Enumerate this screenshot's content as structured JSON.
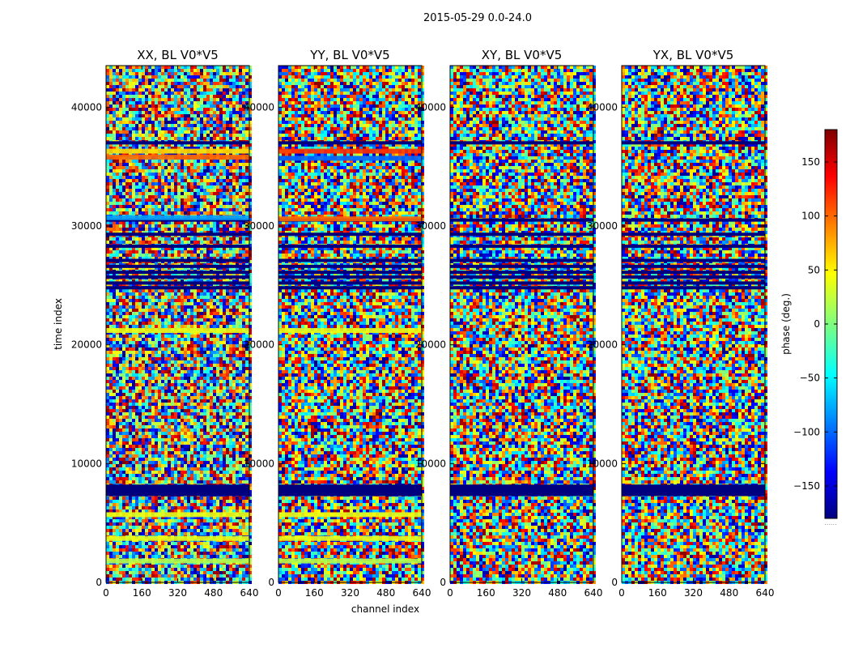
{
  "figure": {
    "suptitle": "2015-05-29 0.0-24.0"
  },
  "chart_data": [
    {
      "type": "heatmap",
      "title": "XX, BL V0*V5",
      "xlabel": "",
      "ylabel": "time index",
      "xlim": [
        0,
        640
      ],
      "ylim": [
        0,
        43500
      ],
      "xticks": [
        0,
        160,
        320,
        480,
        640
      ],
      "yticks": [
        0,
        10000,
        20000,
        30000,
        40000
      ],
      "features": {
        "flagged_rows": [
          7400,
          7700,
          8100,
          24800,
          25200,
          25700,
          26100,
          26600,
          27100,
          28300,
          29300,
          30500,
          37000
        ],
        "coherent_bands": [
          {
            "y": 1800,
            "phase": 20
          },
          {
            "y": 3700,
            "phase": 40
          },
          {
            "y": 5700,
            "phase": 40
          },
          {
            "y": 21200,
            "phase": 40
          },
          {
            "y": 35800,
            "phase": 100
          },
          {
            "y": 36300,
            "phase": 60
          },
          {
            "y": 30700,
            "phase": -80
          }
        ]
      }
    },
    {
      "type": "heatmap",
      "title": "YY, BL V0*V5",
      "xlabel": "channel index",
      "ylabel": "",
      "xlim": [
        0,
        640
      ],
      "ylim": [
        0,
        43500
      ],
      "xticks": [
        0,
        160,
        320,
        480,
        640
      ],
      "yticks": [
        0,
        10000,
        20000,
        30000,
        40000
      ],
      "features": {
        "flagged_rows": [
          7400,
          7700,
          8100,
          24800,
          25200,
          25700,
          26100,
          26600,
          27100,
          28300,
          29300,
          30500,
          37000
        ],
        "coherent_bands": [
          {
            "y": 1800,
            "phase": 20
          },
          {
            "y": 3700,
            "phase": 40
          },
          {
            "y": 5700,
            "phase": 40
          },
          {
            "y": 21200,
            "phase": 40
          },
          {
            "y": 35700,
            "phase": -100
          },
          {
            "y": 36300,
            "phase": 120
          },
          {
            "y": 30600,
            "phase": 100
          }
        ]
      }
    },
    {
      "type": "heatmap",
      "title": "XY, BL V0*V5",
      "xlabel": "",
      "ylabel": "",
      "xlim": [
        0,
        640
      ],
      "ylim": [
        0,
        43500
      ],
      "xticks": [
        0,
        160,
        320,
        480,
        640
      ],
      "yticks": [
        0,
        10000,
        20000,
        30000,
        40000
      ],
      "features": {
        "flagged_rows": [
          7400,
          7700,
          8100,
          24800,
          25200,
          25700,
          26100,
          26600,
          27100,
          28300,
          29300,
          30500,
          37000
        ],
        "coherent_bands": []
      }
    },
    {
      "type": "heatmap",
      "title": "YX, BL V0*V5",
      "xlabel": "",
      "ylabel": "",
      "xlim": [
        0,
        640
      ],
      "ylim": [
        0,
        43500
      ],
      "xticks": [
        0,
        160,
        320,
        480,
        640
      ],
      "yticks": [
        0,
        10000,
        20000,
        30000,
        40000
      ],
      "features": {
        "flagged_rows": [
          7400,
          7700,
          8100,
          24800,
          25200,
          25700,
          26100,
          26600,
          27100,
          28300,
          29300,
          30500,
          37000
        ],
        "coherent_bands": []
      }
    }
  ],
  "colorbar": {
    "label": "phase (deg.)",
    "range": [
      -180,
      180
    ],
    "ticks": [
      -150,
      -100,
      -50,
      0,
      50,
      100,
      150
    ],
    "tick_labels": [
      "−150",
      "−100",
      "−50",
      "0",
      "50",
      "100",
      "150"
    ],
    "colormap": "jet",
    "colors": [
      "#00007f",
      "#0000ff",
      "#00ffff",
      "#7fff7f",
      "#ffff00",
      "#ff0000",
      "#7f0000"
    ],
    "footer": "......"
  }
}
